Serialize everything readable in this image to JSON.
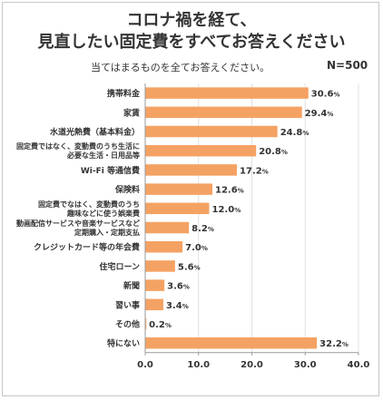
{
  "header": {
    "title_line1": "コロナ禍を経て、",
    "title_line2": "見直したい固定費をすべてお答えください",
    "subtitle": "当てはまるものを全てお答えください。",
    "sample": "N=500"
  },
  "colors": {
    "bar": "#f4a263",
    "axis": "#999999",
    "grid": "#e0e0e0",
    "text": "#333333"
  },
  "chart_data": {
    "type": "bar",
    "orientation": "horizontal",
    "title": "コロナ禍を経て、見直したい固定費をすべてお答えください",
    "xlim": [
      0,
      40
    ],
    "xticks": [
      "0.0",
      "10.0",
      "20.0",
      "30.0",
      "40.0"
    ],
    "unit": "%",
    "categories": [
      [
        "携帯料金"
      ],
      [
        "家賃"
      ],
      [
        "水道光熱費（基本料金）"
      ],
      [
        "固定費ではなく、変動費のうち生活に",
        "必要な生活・日用品等"
      ],
      [
        "Wi-Fi 等通信費"
      ],
      [
        "保険料"
      ],
      [
        "固定費でなはく、変動費のうち",
        "趣味などに使う娯楽費"
      ],
      [
        "動画配信サービスや音楽サービスなど",
        "定期購入・定期支払"
      ],
      [
        "クレジットカード等の年会費"
      ],
      [
        "住宅ローン"
      ],
      [
        "新聞"
      ],
      [
        "習い事"
      ],
      [
        "その他"
      ],
      [
        "特にない"
      ]
    ],
    "values": [
      30.6,
      29.4,
      24.8,
      20.8,
      17.2,
      12.6,
      12.0,
      8.2,
      7.0,
      5.6,
      3.6,
      3.4,
      0.2,
      32.2
    ],
    "value_labels": [
      "30.6",
      "29.4",
      "24.8",
      "20.8",
      "17.2",
      "12.6",
      "12.0",
      "8.2",
      "7.0",
      "5.6",
      "3.6",
      "3.4",
      "0.2",
      "32.2"
    ]
  }
}
